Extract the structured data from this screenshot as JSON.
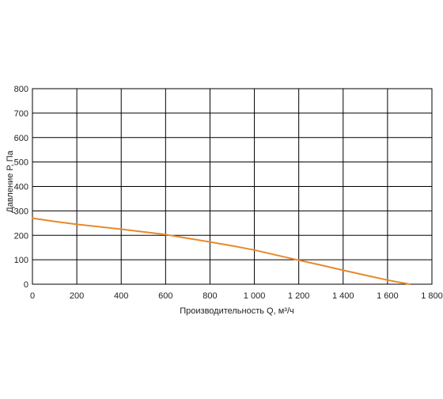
{
  "chart_data": {
    "type": "line",
    "xlabel": "Производительность Q, м³/ч",
    "ylabel": "Давление Р, Па",
    "xlim": [
      0,
      1800
    ],
    "ylim": [
      0,
      800
    ],
    "x_ticks": [
      0,
      200,
      400,
      600,
      800,
      1000,
      1200,
      1400,
      1600,
      1800
    ],
    "x_tick_labels": [
      "0",
      "200",
      "400",
      "600",
      "800",
      "1 000",
      "1 200",
      "1 400",
      "1 600",
      "1 800"
    ],
    "y_ticks": [
      0,
      100,
      200,
      300,
      400,
      500,
      600,
      700,
      800
    ],
    "y_tick_labels": [
      "0",
      "100",
      "200",
      "300",
      "400",
      "500",
      "600",
      "700",
      "800"
    ],
    "grid": true,
    "series": [
      {
        "color": "#E8892B",
        "x": [
          0,
          100,
          200,
          300,
          400,
          500,
          600,
          700,
          800,
          900,
          1000,
          1100,
          1200,
          1300,
          1400,
          1500,
          1600,
          1700
        ],
        "y": [
          270,
          257,
          245,
          235,
          225,
          214,
          203,
          188,
          173,
          157,
          140,
          119,
          98,
          78,
          57,
          37,
          17,
          0
        ]
      }
    ]
  }
}
